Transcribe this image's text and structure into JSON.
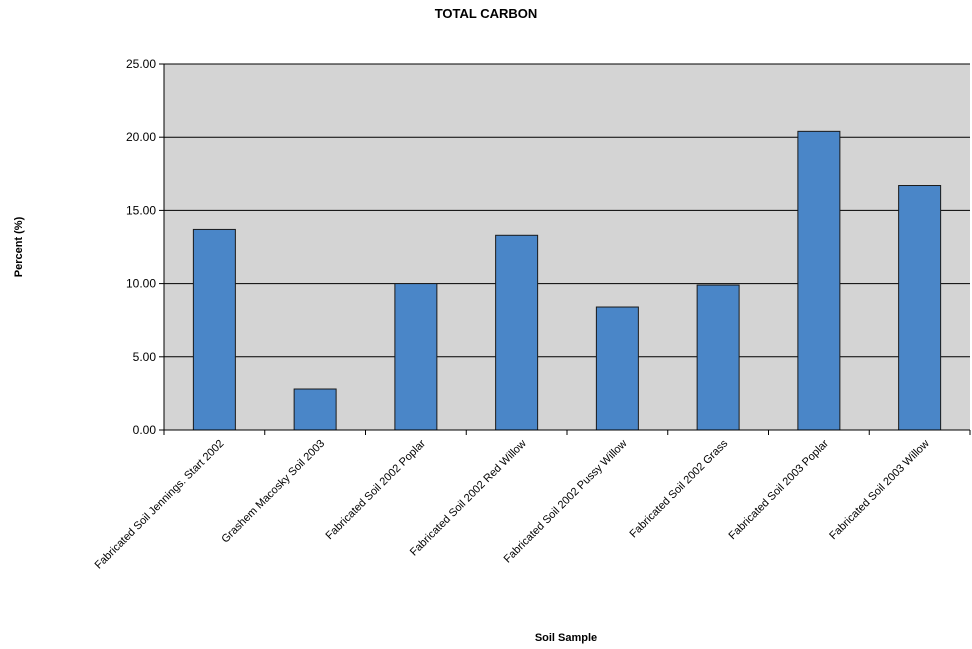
{
  "chart_data": {
    "type": "bar",
    "title": "TOTAL CARBON",
    "xlabel": "Soil Sample",
    "ylabel": "Percent (%)",
    "ylim": [
      0,
      25
    ],
    "yticks": [
      "0.00",
      "5.00",
      "10.00",
      "15.00",
      "20.00",
      "25.00"
    ],
    "grid": true,
    "legend": "none",
    "categories": [
      "Fabricated Soil Jennings. Start 2002",
      "Grashem Macosky Soil 2003",
      "Fabricated Soil 2002 Poplar",
      "Fabricated Soil 2002 Red Willow",
      "Fabricated Soil 2002 Pussy Willow",
      "Fabricated Soil 2002 Grass",
      "Fabricated Soil 2003 Poplar",
      "Fabricated Soil 2003 Willow"
    ],
    "values": [
      13.7,
      2.8,
      10.0,
      13.3,
      8.4,
      9.9,
      20.4,
      16.7
    ],
    "colors": {
      "bar": "#4a86c8",
      "bar_stroke": "#1a1a1a",
      "plot_bg": "#d4d4d4",
      "gridline": "#000000"
    }
  }
}
